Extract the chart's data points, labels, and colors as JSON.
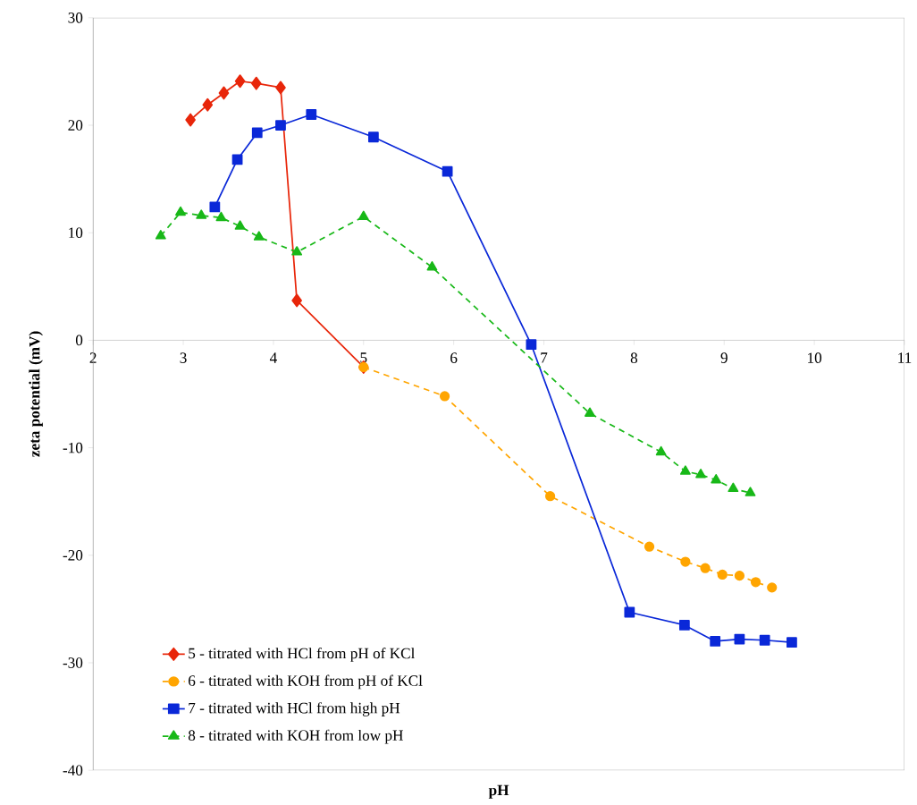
{
  "chart_data": {
    "type": "line",
    "xlabel": "pH",
    "ylabel": "zeta potential (mV)",
    "xlim": [
      2,
      11
    ],
    "ylim": [
      -40,
      30
    ],
    "xticks": [
      2,
      3,
      4,
      5,
      6,
      7,
      8,
      9,
      10,
      11
    ],
    "yticks": [
      -40,
      -30,
      -20,
      -10,
      0,
      10,
      20,
      30
    ],
    "grid": false,
    "legend": "bottom left",
    "series": [
      {
        "name": "5 - titrated with HCl from pH of KCl",
        "color": "#e8260a",
        "marker": "diamond",
        "line_style": "solid",
        "x": [
          3.08,
          3.27,
          3.45,
          3.63,
          3.81,
          4.08,
          4.26,
          5.0
        ],
        "values": [
          20.5,
          21.9,
          23.0,
          24.1,
          23.9,
          23.5,
          3.7,
          -2.5
        ]
      },
      {
        "name": "6 - titrated with KOH from pH of KCl",
        "color": "#ffa500",
        "marker": "circle",
        "line_style": "dashed",
        "x": [
          5.0,
          5.9,
          7.07,
          8.17,
          8.57,
          8.79,
          8.98,
          9.17,
          9.35,
          9.53
        ],
        "values": [
          -2.5,
          -5.2,
          -14.5,
          -19.2,
          -20.6,
          -21.2,
          -21.8,
          -21.9,
          -22.5,
          -23.0
        ]
      },
      {
        "name": "7 - titrated with HCl from high pH",
        "color": "#0a28d8",
        "marker": "square",
        "line_style": "solid",
        "x": [
          3.35,
          3.6,
          3.82,
          4.08,
          4.42,
          5.11,
          5.93,
          6.86,
          7.95,
          8.56,
          8.9,
          9.17,
          9.45,
          9.75
        ],
        "values": [
          12.4,
          16.8,
          19.3,
          20.0,
          21.0,
          18.9,
          15.7,
          -0.4,
          -25.3,
          -26.5,
          -28.0,
          -27.8,
          -27.9,
          -28.1
        ]
      },
      {
        "name": "8 - titrated with KOH from low pH",
        "color": "#18b818",
        "marker": "triangle",
        "line_style": "dashed",
        "x": [
          2.75,
          2.97,
          3.2,
          3.42,
          3.63,
          3.84,
          4.26,
          5.0,
          5.76,
          7.51,
          8.3,
          8.57,
          8.74,
          8.91,
          9.1,
          9.29
        ],
        "values": [
          9.7,
          11.9,
          11.6,
          11.4,
          10.6,
          9.6,
          8.2,
          11.5,
          6.8,
          -6.8,
          -10.4,
          -12.2,
          -12.5,
          -13.0,
          -13.8,
          -14.2
        ]
      }
    ]
  }
}
